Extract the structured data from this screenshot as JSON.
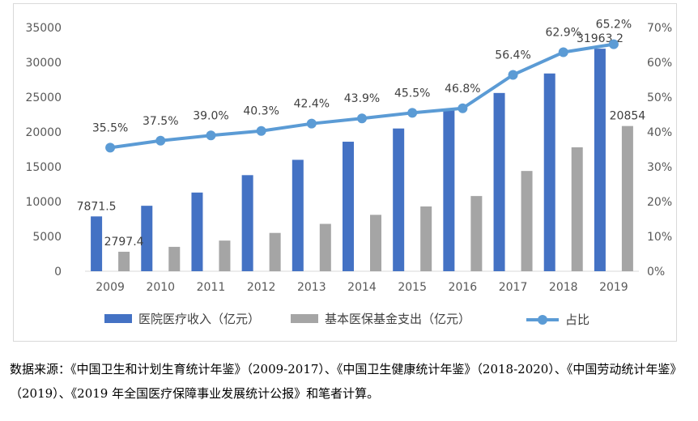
{
  "chart_data": {
    "type": "bar",
    "categories": [
      "2009",
      "2010",
      "2011",
      "2012",
      "2013",
      "2014",
      "2015",
      "2016",
      "2017",
      "2018",
      "2019"
    ],
    "series": [
      {
        "name": "医院医疗收入（亿元）",
        "kind": "bar",
        "axis": "left",
        "color": "#4472c4",
        "values": [
          7871.5,
          9400,
          11300,
          13800,
          16000,
          18600,
          20500,
          23100,
          25600,
          28400,
          31963.2
        ]
      },
      {
        "name": "基本医保基金支出（亿元）",
        "kind": "bar",
        "axis": "left",
        "color": "#a5a5a5",
        "values": [
          2797.4,
          3500,
          4400,
          5500,
          6800,
          8100,
          9300,
          10800,
          14400,
          17800,
          20854
        ]
      },
      {
        "name": "占比",
        "kind": "line",
        "axis": "right",
        "color": "#5b9bd5",
        "values": [
          35.5,
          37.5,
          39.0,
          40.3,
          42.4,
          43.9,
          45.5,
          46.8,
          56.4,
          62.9,
          65.2
        ]
      }
    ],
    "bar_data_labels": [
      {
        "series": 0,
        "index": 0,
        "text": "7871.5"
      },
      {
        "series": 1,
        "index": 0,
        "text": "2797.4"
      },
      {
        "series": 0,
        "index": 10,
        "text": "31963.2"
      },
      {
        "series": 1,
        "index": 10,
        "text": "20854"
      }
    ],
    "line_data_labels": [
      "35.5%",
      "37.5%",
      "39.0%",
      "40.3%",
      "42.4%",
      "43.9%",
      "45.5%",
      "46.8%",
      "56.4%",
      "62.9%",
      "65.2%"
    ],
    "y_left": {
      "ticks": [
        "0",
        "5000",
        "10000",
        "15000",
        "20000",
        "25000",
        "30000",
        "35000"
      ],
      "min": 0,
      "max": 35000
    },
    "y_right": {
      "ticks": [
        "0%",
        "10%",
        "20%",
        "30%",
        "40%",
        "50%",
        "60%",
        "70%"
      ],
      "min": 0,
      "max": 70
    },
    "grid": false,
    "legend_position": "bottom"
  },
  "caption": "数据来源：《中国卫生和计划生育统计年鉴》（2009-2017）、《中国卫生健康统计年鉴》（2018-2020）、《中国劳动统计年鉴》（2019）、《2019 年全国医疗保障事业发展统计公报》和笔者计算。"
}
